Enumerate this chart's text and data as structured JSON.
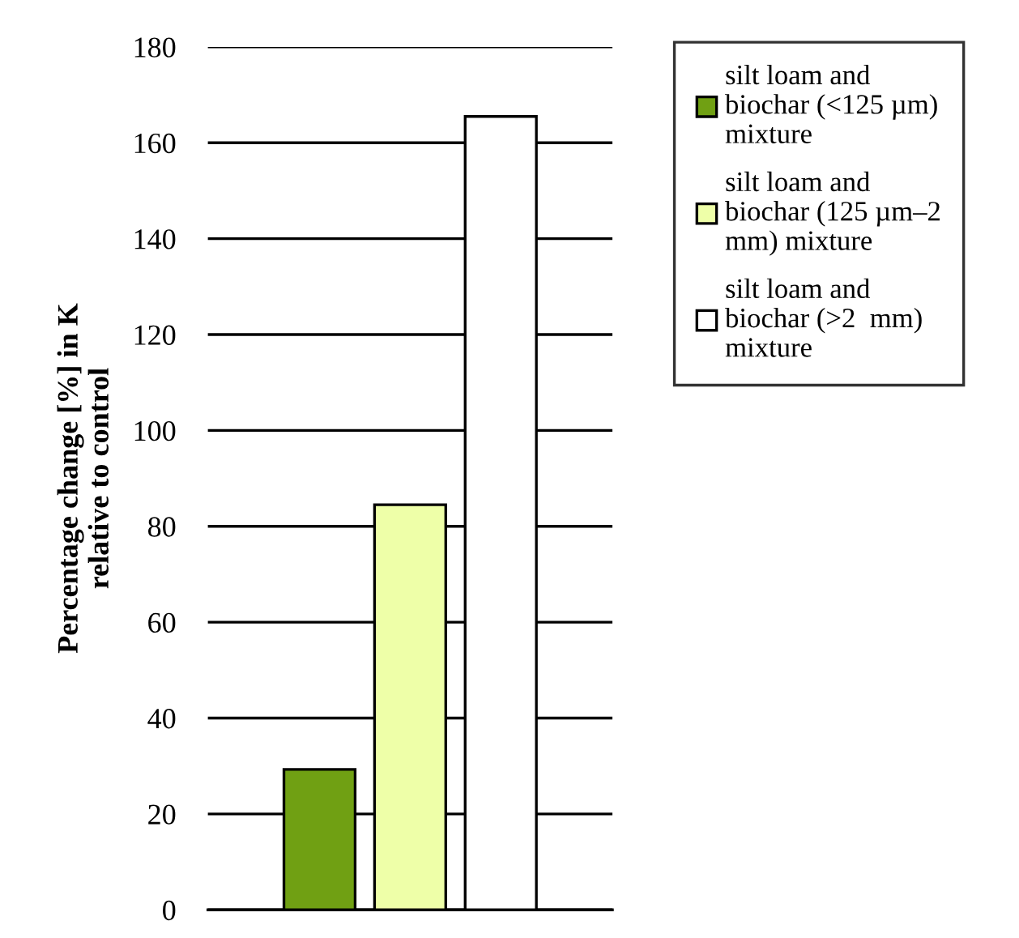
{
  "chart_data": {
    "type": "bar",
    "categories": [
      null
    ],
    "series": [
      {
        "name": "silt loam and\nbiochar (<125 µm)\nmixture",
        "color": "#70a013",
        "values": [
          29.3
        ]
      },
      {
        "name": "silt loam and\nbiochar (125 µm–2\nmm) mixture",
        "color": "#eeffa8",
        "values": [
          84.5
        ]
      },
      {
        "name": "silt loam and\nbiochar (>2  mm)\nmixture",
        "color": "#ffffff",
        "values": [
          165.5
        ]
      }
    ],
    "ylabel": "Percentage change [%] in K\nrelative to control",
    "ylim": [
      0,
      180
    ],
    "yticks": [
      0,
      20,
      40,
      60,
      80,
      100,
      120,
      140,
      160,
      180
    ],
    "grid": "y",
    "legend": "top right"
  }
}
